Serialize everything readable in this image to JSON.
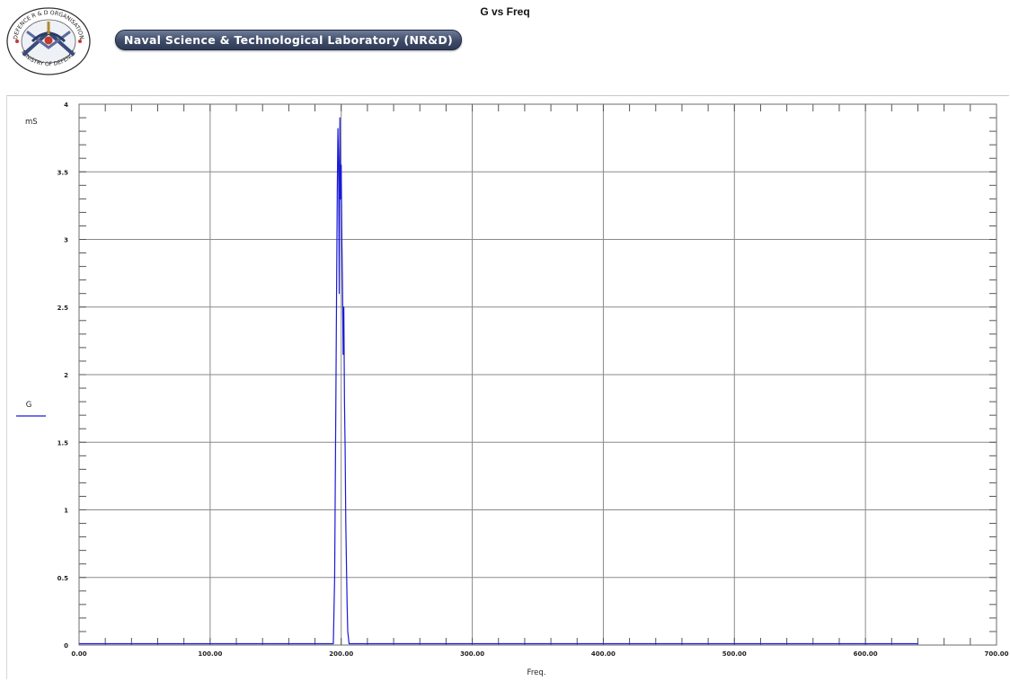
{
  "header": {
    "title": "G vs Freq",
    "org_name": "Naval Science & Technological Laboratory (NR&D)",
    "logo": {
      "icon": "drdo-emblem-icon",
      "ring_text_top": "DEFENCE R & D ORGANISATION",
      "ring_text_bottom": "MINISTRY OF DEFENCE"
    }
  },
  "chart_data": {
    "type": "line",
    "title": "G vs Freq",
    "xlabel": "Freq.",
    "ylabel": "mS",
    "xlim": [
      0,
      700
    ],
    "ylim": [
      0,
      4
    ],
    "x_tick_labels": [
      "0.00",
      "100.00",
      "200.00",
      "300.00",
      "400.00",
      "500.00",
      "600.00",
      "700.00"
    ],
    "y_tick_labels": [
      "0",
      "0.5",
      "1",
      "1.5",
      "2",
      "2.5",
      "3",
      "3.5",
      "4"
    ],
    "grid": true,
    "legend": "left",
    "series": [
      {
        "name": "G",
        "color": "#1a1ad6",
        "x": [
          0,
          194,
          195,
          195.5,
          196,
          196.5,
          197,
          197.5,
          198,
          198.5,
          199,
          199.5,
          200,
          200.5,
          201,
          201.5,
          202,
          202.5,
          203,
          203.5,
          204,
          204.5,
          205,
          206,
          640
        ],
        "y": [
          0.01,
          0.01,
          0.5,
          1.2,
          1.9,
          2.65,
          3.35,
          3.82,
          3.58,
          2.6,
          3.9,
          3.3,
          3.55,
          3.0,
          2.65,
          2.15,
          2.5,
          1.8,
          1.45,
          0.9,
          0.6,
          0.3,
          0.1,
          0.01,
          0.01
        ]
      }
    ]
  }
}
